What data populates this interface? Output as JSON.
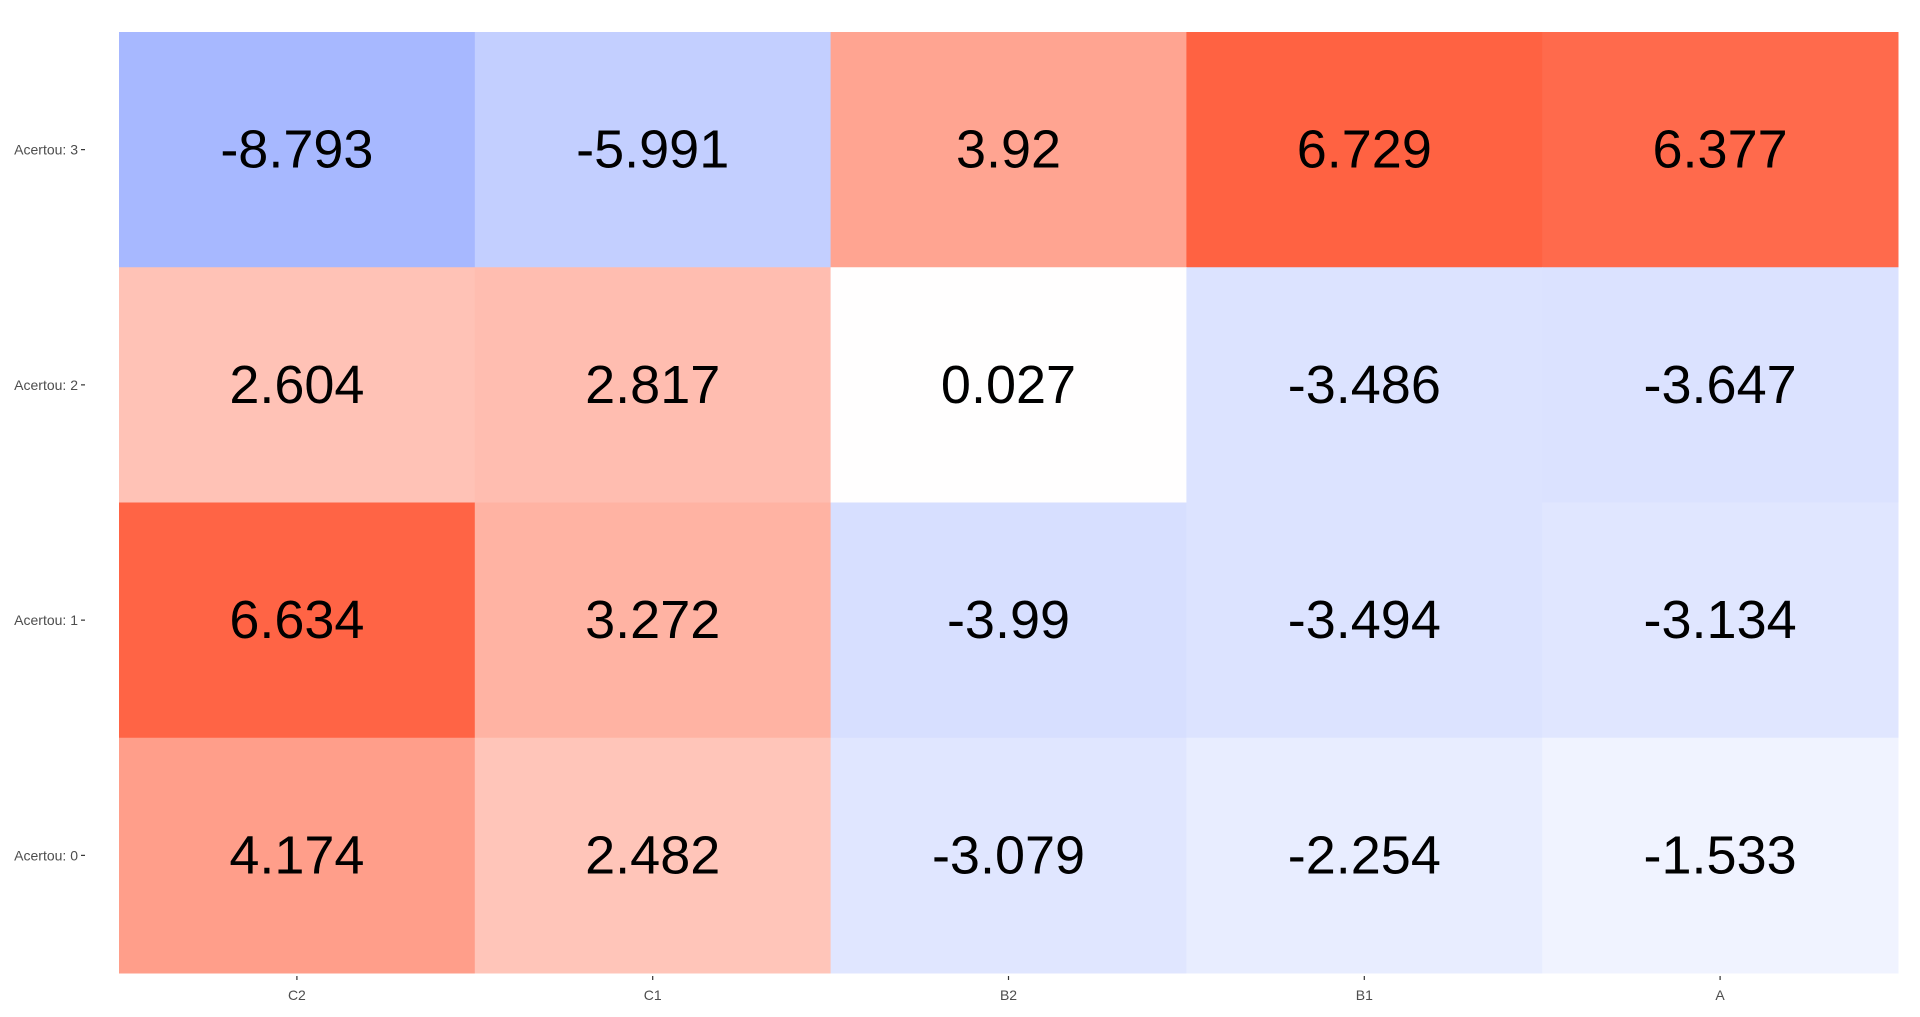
{
  "chart_data": {
    "type": "heatmap",
    "title": "",
    "xlabel": "",
    "ylabel": "",
    "x_categories": [
      "C2",
      "C1",
      "B2",
      "B1",
      "A"
    ],
    "y_categories": [
      "Acertou: 3",
      "Acertou: 2",
      "Acertou: 1",
      "Acertou: 0"
    ],
    "values": [
      [
        -8.793,
        -5.991,
        3.92,
        6.729,
        6.377
      ],
      [
        2.604,
        2.817,
        0.027,
        -3.486,
        -3.647
      ],
      [
        6.634,
        3.272,
        -3.99,
        -3.494,
        -3.134
      ],
      [
        4.174,
        2.482,
        -3.079,
        -2.254,
        -1.533
      ]
    ],
    "value_labels": [
      [
        "-8.793",
        "-5.991",
        "3.92",
        "6.729",
        "6.377"
      ],
      [
        "2.604",
        "2.817",
        "0.027",
        "-3.486",
        "-3.647"
      ],
      [
        "6.634",
        "3.272",
        "-3.99",
        "-3.494",
        "-3.134"
      ],
      [
        "4.174",
        "2.482",
        "-3.079",
        "-2.254",
        "-1.533"
      ]
    ],
    "color_scale": {
      "low": "#a7b8ff",
      "mid": "#ffffff",
      "high": "#ff6242",
      "min": -8.793,
      "max": 6.729
    },
    "grid": false,
    "legend": "none"
  }
}
